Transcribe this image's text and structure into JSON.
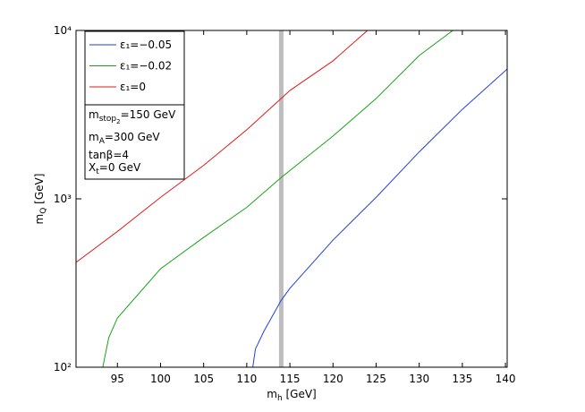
{
  "chart_data": {
    "type": "line",
    "xlabel": [
      {
        "text": "m"
      },
      {
        "sub": "h"
      },
      {
        "text": " [GeV]"
      }
    ],
    "ylabel": [
      {
        "text": "m"
      },
      {
        "sub": "Q"
      },
      {
        "text": " [GeV]"
      }
    ],
    "log_y": true,
    "xlim": [
      90.2,
      140.2
    ],
    "xticks": [
      95,
      100,
      105,
      110,
      115,
      120,
      125,
      130,
      135,
      140
    ],
    "ylim": [
      100,
      10000
    ],
    "yticks": [
      {
        "value": 100,
        "label": "10²"
      },
      {
        "value": 1000,
        "label": "10³"
      },
      {
        "value": 10000,
        "label": "10⁴"
      }
    ],
    "vline": {
      "x": 114,
      "color": "#bdbdbd"
    },
    "series": [
      {
        "name": "ε₁=−0.05",
        "color": "#1f3fe0",
        "x": [
          110.7,
          111,
          112,
          114,
          115,
          120,
          125,
          130,
          135,
          140.2
        ],
        "values": [
          100,
          128,
          164,
          250,
          294,
          569,
          1020,
          1900,
          3400,
          5900
        ]
      },
      {
        "name": "ε₁=−0.02",
        "color": "#1aa31a",
        "x": [
          93.3,
          94,
          95,
          100,
          105,
          110,
          114,
          120,
          125,
          130,
          133.9
        ],
        "values": [
          100,
          150,
          196,
          384,
          590,
          890,
          1340,
          2360,
          3940,
          7100,
          10000
        ]
      },
      {
        "name": "ε₁=0",
        "color": "#e01a1a",
        "x": [
          90.2,
          95,
          100,
          105,
          110,
          114,
          115,
          120,
          124
        ],
        "values": [
          419,
          640,
          1020,
          1580,
          2570,
          3950,
          4400,
          6600,
          10000
        ]
      }
    ],
    "annotations": [
      [
        {
          "text": "m"
        },
        {
          "sub": "stop"
        },
        {
          "subsub": "2"
        },
        {
          "text": "=150 GeV"
        }
      ],
      [
        {
          "text": "m"
        },
        {
          "sub": "A"
        },
        {
          "text": "=300 GeV"
        }
      ],
      [
        {
          "text": "tanβ=4"
        }
      ],
      [
        {
          "text": "X"
        },
        {
          "sub": "t"
        },
        {
          "text": "=0 GeV"
        }
      ]
    ]
  }
}
